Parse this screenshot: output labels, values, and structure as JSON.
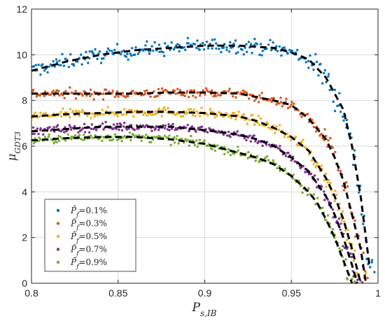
{
  "chart_data": {
    "type": "scatter",
    "xlabel": "P_{s,IB}",
    "ylabel": "μ_{GDT3}",
    "xlim": [
      0.8,
      1.0
    ],
    "ylim": [
      0,
      12
    ],
    "xticks": [
      "0.8",
      "0.85",
      "0.9",
      "0.95",
      "1"
    ],
    "yticks": [
      "0",
      "2",
      "4",
      "6",
      "8",
      "10",
      "12"
    ],
    "grid": true,
    "legend_position": "bottom-left",
    "fit_line_style": "black dashed",
    "series": [
      {
        "name": "P̄f=0.1%",
        "color": "#0072BD",
        "scatter_noise": 0.32,
        "fit": {
          "x": [
            0.8,
            0.82,
            0.84,
            0.86,
            0.88,
            0.9,
            0.92,
            0.94,
            0.95,
            0.96,
            0.97,
            0.98,
            0.985,
            0.99,
            0.995
          ],
          "y": [
            9.3,
            9.7,
            10.0,
            10.2,
            10.3,
            10.4,
            10.4,
            10.3,
            10.1,
            9.8,
            9.0,
            7.6,
            6.0,
            3.8,
            0.8
          ]
        }
      },
      {
        "name": "P̄f=0.3%",
        "color": "#D95319",
        "scatter_noise": 0.2,
        "fit": {
          "x": [
            0.8,
            0.82,
            0.84,
            0.86,
            0.88,
            0.9,
            0.92,
            0.94,
            0.95,
            0.96,
            0.97,
            0.975,
            0.98,
            0.985,
            0.99,
            0.993
          ],
          "y": [
            8.3,
            8.3,
            8.3,
            8.3,
            8.35,
            8.35,
            8.3,
            8.0,
            7.8,
            7.2,
            6.3,
            5.5,
            4.5,
            3.0,
            1.5,
            0.0
          ]
        }
      },
      {
        "name": "P̄f=0.5%",
        "color": "#EDB120",
        "scatter_noise": 0.2,
        "fit": {
          "x": [
            0.8,
            0.82,
            0.84,
            0.86,
            0.88,
            0.9,
            0.92,
            0.93,
            0.94,
            0.95,
            0.96,
            0.97,
            0.975,
            0.98,
            0.985,
            0.99
          ],
          "y": [
            7.3,
            7.4,
            7.45,
            7.5,
            7.5,
            7.45,
            7.3,
            7.1,
            6.8,
            6.4,
            5.8,
            4.6,
            3.8,
            2.8,
            1.5,
            0.0
          ]
        }
      },
      {
        "name": "P̄f=0.7%",
        "color": "#7E2F8E",
        "scatter_noise": 0.18,
        "fit": {
          "x": [
            0.8,
            0.82,
            0.84,
            0.86,
            0.88,
            0.9,
            0.92,
            0.93,
            0.94,
            0.95,
            0.96,
            0.97,
            0.975,
            0.98,
            0.985,
            0.988
          ],
          "y": [
            6.65,
            6.75,
            6.85,
            6.85,
            6.85,
            6.7,
            6.5,
            6.3,
            6.0,
            5.5,
            4.9,
            3.8,
            3.0,
            2.0,
            0.8,
            0.0
          ]
        }
      },
      {
        "name": "P̄f=0.9%",
        "color": "#77AC30",
        "scatter_noise": 0.18,
        "fit": {
          "x": [
            0.8,
            0.82,
            0.84,
            0.86,
            0.88,
            0.9,
            0.92,
            0.93,
            0.94,
            0.95,
            0.96,
            0.965,
            0.97,
            0.975,
            0.98,
            0.985
          ],
          "y": [
            6.25,
            6.35,
            6.4,
            6.4,
            6.3,
            6.1,
            5.7,
            5.5,
            5.2,
            4.7,
            4.0,
            3.5,
            2.8,
            2.0,
            1.0,
            0.0
          ]
        }
      }
    ]
  }
}
